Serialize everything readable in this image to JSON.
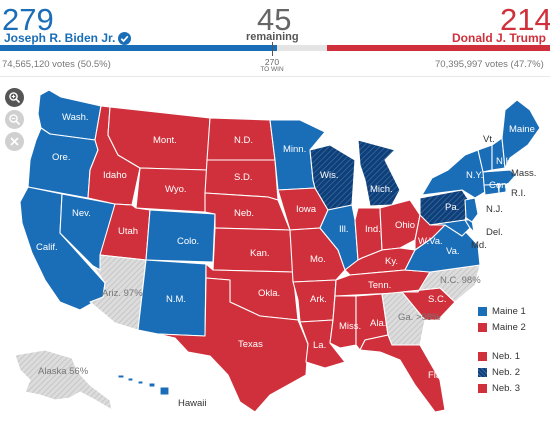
{
  "header": {
    "biden": {
      "electoral": "279",
      "name": "Joseph R. Biden Jr.",
      "votes": "74,565,120 votes (50.5%)",
      "color": "#1a6eb8"
    },
    "remaining": {
      "number": "45",
      "label": "remaining"
    },
    "trump": {
      "electoral": "214",
      "name": "Donald J. Trump",
      "votes": "70,395,997 votes (47.7%)",
      "color": "#d0303b"
    },
    "to_win": {
      "number": "270",
      "label": "TO WIN"
    }
  },
  "map_controls": {
    "zoom_in_icon": "zoom-in-icon",
    "zoom_out_icon": "zoom-out-icon",
    "reset_icon": "close-icon"
  },
  "states": {
    "wash": "Wash.",
    "ore": "Ore.",
    "calif": "Calif.",
    "nev": "Nev.",
    "idaho": "Idaho",
    "mont": "Mont.",
    "wyo": "Wyo.",
    "utah": "Utah",
    "colo": "Colo.",
    "ariz": "Ariz. 97%",
    "nm": "N.M.",
    "nd": "N.D.",
    "sd": "S.D.",
    "neb": "Neb.",
    "kan": "Kan.",
    "okla": "Okla.",
    "texas": "Texas",
    "minn": "Minn.",
    "iowa": "Iowa",
    "mo": "Mo.",
    "ark": "Ark.",
    "la": "La.",
    "wis": "Wis.",
    "ill": "Ill.",
    "mich": "Mich.",
    "ind": "Ind.",
    "ohio": "Ohio",
    "ky": "Ky.",
    "tenn": "Tenn.",
    "miss": "Miss.",
    "ala": "Ala.",
    "ga": "Ga. >98%",
    "fla": "Fla.",
    "sc": "S.C.",
    "nc": "N.C. 98%",
    "va": "Va.",
    "wva": "W.Va.",
    "pa": "Pa.",
    "ny": "N.Y.",
    "vt": "Vt.",
    "nh": "N.H.",
    "maine": "Maine",
    "mass": "Mass.",
    "ri": "R.I.",
    "conn": "Conn.",
    "nj": "N.J.",
    "del": "Del.",
    "md": "Md.",
    "alaska": "Alaska 56%",
    "hawaii": "Hawaii"
  },
  "legend": [
    {
      "label": "Maine 1",
      "color": "#1a6eb8",
      "hatched": false
    },
    {
      "label": "Maine 2",
      "color": "#d0303b",
      "hatched": false
    },
    {
      "label": "Neb. 1",
      "color": "#d0303b",
      "hatched": false
    },
    {
      "label": "Neb. 2",
      "color": "#0e3f78",
      "hatched": true
    },
    {
      "label": "Neb. 3",
      "color": "#d0303b",
      "hatched": false
    }
  ]
}
